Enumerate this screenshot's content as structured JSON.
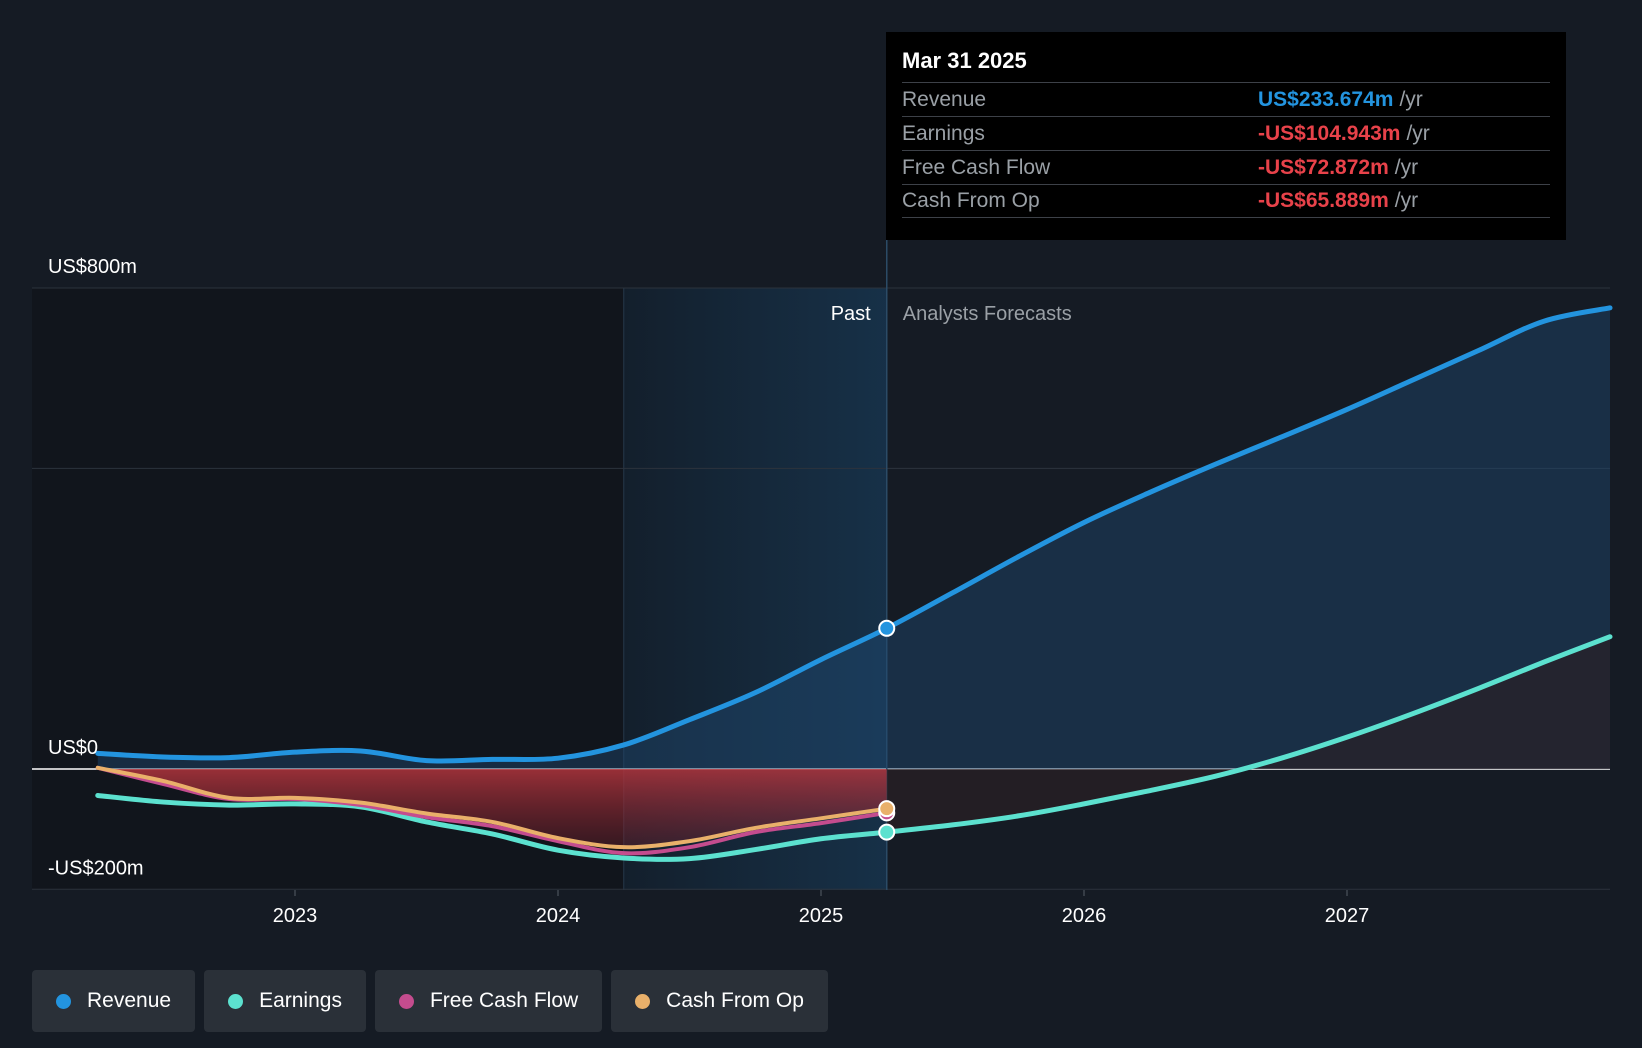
{
  "chart_data": {
    "type": "line",
    "y_axis": {
      "ticks": [
        {
          "value": 800,
          "label": "US$800m"
        },
        {
          "value": 0,
          "label": "US$0"
        },
        {
          "value": -200,
          "label": "-US$200m"
        }
      ],
      "gridlines": [
        800,
        500,
        0,
        -200
      ],
      "ylim": [
        -200,
        800
      ],
      "unit": "US$m"
    },
    "x_axis": {
      "ticks": [
        {
          "value": 2023,
          "label": "2023"
        },
        {
          "value": 2024,
          "label": "2024"
        },
        {
          "value": 2025,
          "label": "2025"
        },
        {
          "value": 2026,
          "label": "2026"
        },
        {
          "value": 2027,
          "label": "2027"
        }
      ],
      "xlim": [
        2022.0,
        2028.0
      ]
    },
    "regions": {
      "past_label": "Past",
      "forecast_label": "Analysts Forecasts",
      "highlight_start": 2024.25,
      "now": 2025.25
    },
    "series": [
      {
        "name": "Revenue",
        "color": "#2394df",
        "x": [
          2022.25,
          2022.5,
          2022.75,
          2023.0,
          2023.25,
          2023.5,
          2023.75,
          2024.0,
          2024.25,
          2024.5,
          2024.75,
          2025.0,
          2025.25,
          2025.5,
          2025.75,
          2026.0,
          2026.25,
          2026.5,
          2026.75,
          2027.0,
          2027.25,
          2027.5,
          2027.75,
          2028.0
        ],
        "values": [
          26,
          20,
          19,
          28,
          30,
          14,
          16,
          18,
          40,
          82,
          127,
          182,
          234,
          293,
          353,
          410,
          460,
          507,
          552,
          598,
          647,
          696,
          745,
          767
        ]
      },
      {
        "name": "Earnings",
        "color": "#5ce1cf",
        "x": [
          2022.25,
          2022.5,
          2022.75,
          2023.0,
          2023.25,
          2023.5,
          2023.75,
          2024.0,
          2024.25,
          2024.5,
          2024.75,
          2025.0,
          2025.25,
          2025.5,
          2025.75,
          2026.0,
          2026.25,
          2026.5,
          2026.75,
          2027.0,
          2027.25,
          2027.5,
          2027.75,
          2028.0
        ],
        "values": [
          -44,
          -55,
          -60,
          -58,
          -63,
          -88,
          -108,
          -135,
          -148,
          -149,
          -134,
          -116,
          -105,
          -93,
          -78,
          -58,
          -36,
          -12,
          18,
          53,
          92,
          134,
          178,
          220
        ]
      },
      {
        "name": "Free Cash Flow",
        "color": "#c44c8e",
        "x": [
          2022.25,
          2022.5,
          2022.75,
          2023.0,
          2023.25,
          2023.5,
          2023.75,
          2024.0,
          2024.25,
          2024.5,
          2024.75,
          2025.0,
          2025.25
        ],
        "values": [
          2,
          -25,
          -50,
          -50,
          -60,
          -80,
          -95,
          -120,
          -140,
          -130,
          -105,
          -90,
          -73
        ]
      },
      {
        "name": "Cash From Op",
        "color": "#e9b06a",
        "x": [
          2022.25,
          2022.5,
          2022.75,
          2023.0,
          2023.25,
          2023.5,
          2023.75,
          2024.0,
          2024.25,
          2024.5,
          2024.75,
          2025.0,
          2025.25
        ],
        "values": [
          2,
          -20,
          -48,
          -48,
          -56,
          -74,
          -88,
          -115,
          -130,
          -120,
          -98,
          -82,
          -66
        ]
      }
    ]
  },
  "tooltip": {
    "date": "Mar 31 2025",
    "rows": [
      {
        "label": "Revenue",
        "value": "US$233.674m",
        "unit": "/yr",
        "color": "#2394df"
      },
      {
        "label": "Earnings",
        "value": "-US$104.943m",
        "unit": "/yr",
        "color": "#e8424a"
      },
      {
        "label": "Free Cash Flow",
        "value": "-US$72.872m",
        "unit": "/yr",
        "color": "#e8424a"
      },
      {
        "label": "Cash From Op",
        "value": "-US$65.889m",
        "unit": "/yr",
        "color": "#e8424a"
      }
    ]
  },
  "legend": [
    {
      "label": "Revenue",
      "color": "#2394df"
    },
    {
      "label": "Earnings",
      "color": "#5ce1cf"
    },
    {
      "label": "Free Cash Flow",
      "color": "#c44c8e"
    },
    {
      "label": "Cash From Op",
      "color": "#e9b06a"
    }
  ]
}
